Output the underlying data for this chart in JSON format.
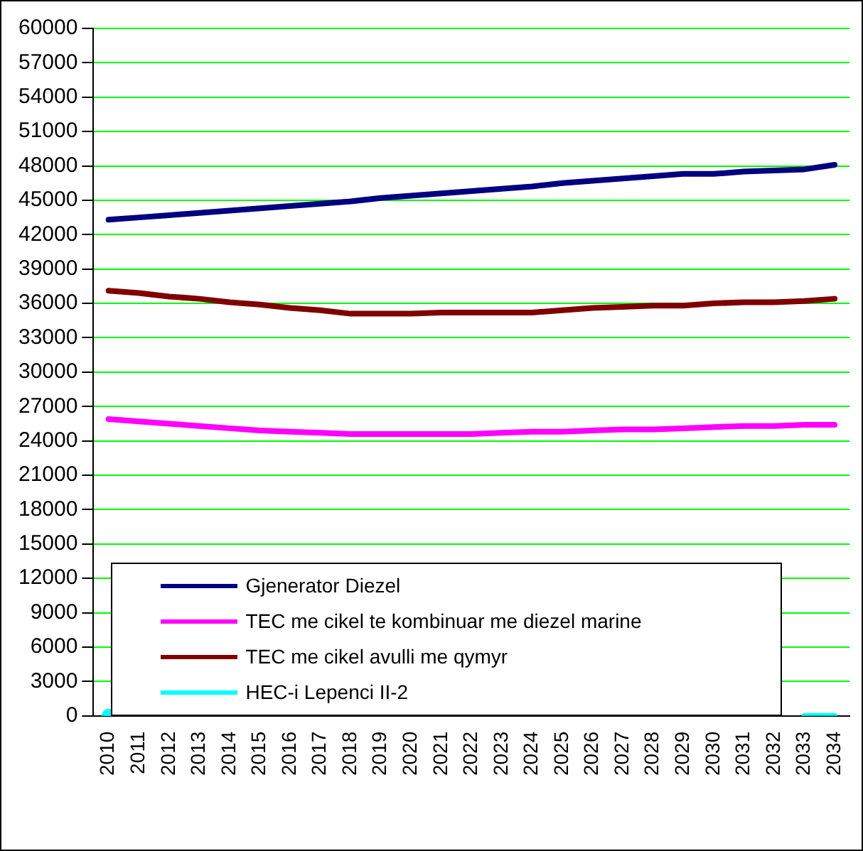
{
  "chart_data": {
    "type": "line",
    "categories": [
      "2010",
      "2011",
      "2012",
      "2013",
      "2014",
      "2015",
      "2016",
      "2017",
      "2018",
      "2019",
      "2020",
      "2021",
      "2022",
      "2023",
      "2024",
      "2025",
      "2026",
      "2027",
      "2028",
      "2029",
      "2030",
      "2031",
      "2032",
      "2033",
      "2034"
    ],
    "ylim": [
      0,
      60000
    ],
    "yticks": [
      0,
      3000,
      6000,
      9000,
      12000,
      15000,
      18000,
      21000,
      24000,
      27000,
      30000,
      33000,
      36000,
      39000,
      42000,
      45000,
      48000,
      51000,
      54000,
      57000,
      60000
    ],
    "grid": "y",
    "legend": "bottom",
    "marker": "none",
    "line_style": "solid",
    "series": [
      {
        "name": "Gjenerator Diezel",
        "color": "#000080",
        "values": [
          43300,
          43500,
          43700,
          43900,
          44100,
          44300,
          44500,
          44700,
          44900,
          45200,
          45400,
          45600,
          45800,
          46000,
          46200,
          46500,
          46700,
          46900,
          47100,
          47300,
          47300,
          47500,
          47600,
          47700,
          48100
        ]
      },
      {
        "name": "TEC me cikel te kombinuar me diezel marine",
        "color": "#ff00ff",
        "values": [
          25900,
          25700,
          25500,
          25300,
          25100,
          24900,
          24800,
          24700,
          24600,
          24600,
          24600,
          24600,
          24600,
          24700,
          24800,
          24800,
          24900,
          25000,
          25000,
          25100,
          25200,
          25300,
          25300,
          25400,
          25400
        ]
      },
      {
        "name": "TEC me cikel avulli me qymyr",
        "color": "#800000",
        "values": [
          37100,
          36900,
          36600,
          36400,
          36100,
          35900,
          35600,
          35400,
          35100,
          35100,
          35100,
          35200,
          35200,
          35200,
          35200,
          35400,
          35600,
          35700,
          35800,
          35800,
          36000,
          36100,
          36100,
          36200,
          36400
        ]
      },
      {
        "name": "HEC-i Lepenci II-2",
        "color": "#00ffff",
        "values": [
          0,
          null,
          null,
          null,
          null,
          null,
          null,
          null,
          null,
          null,
          null,
          null,
          null,
          null,
          null,
          null,
          null,
          null,
          null,
          null,
          null,
          null,
          null,
          0,
          0
        ]
      }
    ]
  }
}
